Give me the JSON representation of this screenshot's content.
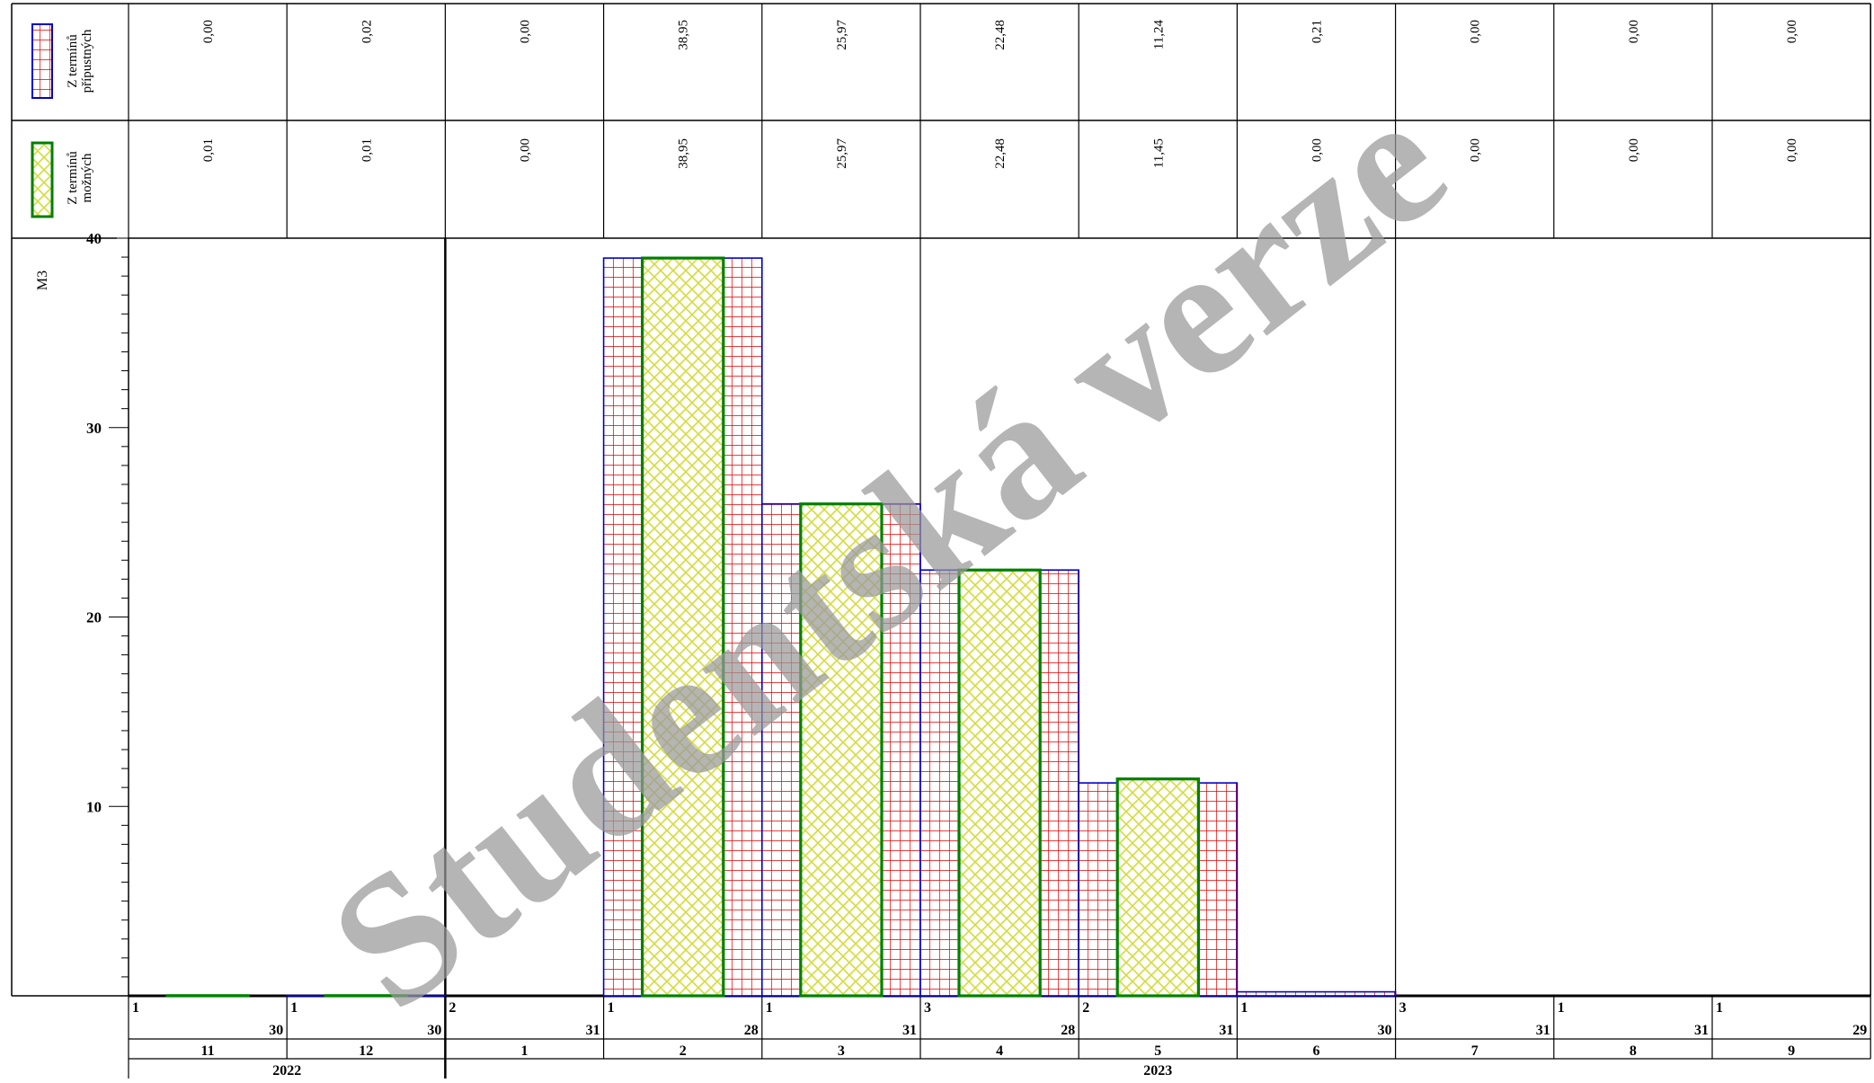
{
  "chart_data": {
    "type": "bar",
    "ylabel": "M3",
    "ylim": [
      0,
      40
    ],
    "yticks": [
      "10",
      "20",
      "30",
      "40"
    ],
    "categories": [
      "11",
      "12",
      "1",
      "2",
      "3",
      "4",
      "5",
      "6",
      "7",
      "8",
      "9"
    ],
    "day_starts": [
      "1",
      "1",
      "2",
      "1",
      "1",
      "3",
      "2",
      "1",
      "3",
      "1",
      "1"
    ],
    "day_ends": [
      "30",
      "30",
      "31",
      "28",
      "31",
      "28",
      "31",
      "30",
      "31",
      "31",
      "29"
    ],
    "years": [
      {
        "label": "2022",
        "months": 2
      },
      {
        "label": "2023",
        "months": 9
      }
    ],
    "series": [
      {
        "name": "Z termínů přípustných",
        "legend_line1": "Z termínů",
        "legend_line2": "přípustných",
        "values": [
          0.0,
          0.02,
          0.0,
          38.95,
          25.97,
          22.48,
          11.24,
          0.21,
          0.0,
          0.0,
          0.0
        ],
        "labels": [
          "0,00",
          "0,02",
          "0,00",
          "38,95",
          "25,97",
          "22,48",
          "11,24",
          "0,21",
          "0,00",
          "0,00",
          "0,00"
        ],
        "fill_color": "#e00000",
        "border_color": "#0000cc",
        "pattern": "grid"
      },
      {
        "name": "Z termínů možných",
        "legend_line1": "Z termínů",
        "legend_line2": "možných",
        "values": [
          0.01,
          0.01,
          0.0,
          38.95,
          25.97,
          22.48,
          11.45,
          0.0,
          0.0,
          0.0,
          0.0
        ],
        "labels": [
          "0,01",
          "0,01",
          "0,00",
          "38,95",
          "25,97",
          "22,48",
          "11,45",
          "0,00",
          "0,00",
          "0,00",
          "0,00"
        ],
        "fill_color": "#d4dc3c",
        "border_color": "#008000",
        "pattern": "crosshatch"
      }
    ],
    "watermark": "Studentská verze",
    "grid": false,
    "legend": "left"
  }
}
